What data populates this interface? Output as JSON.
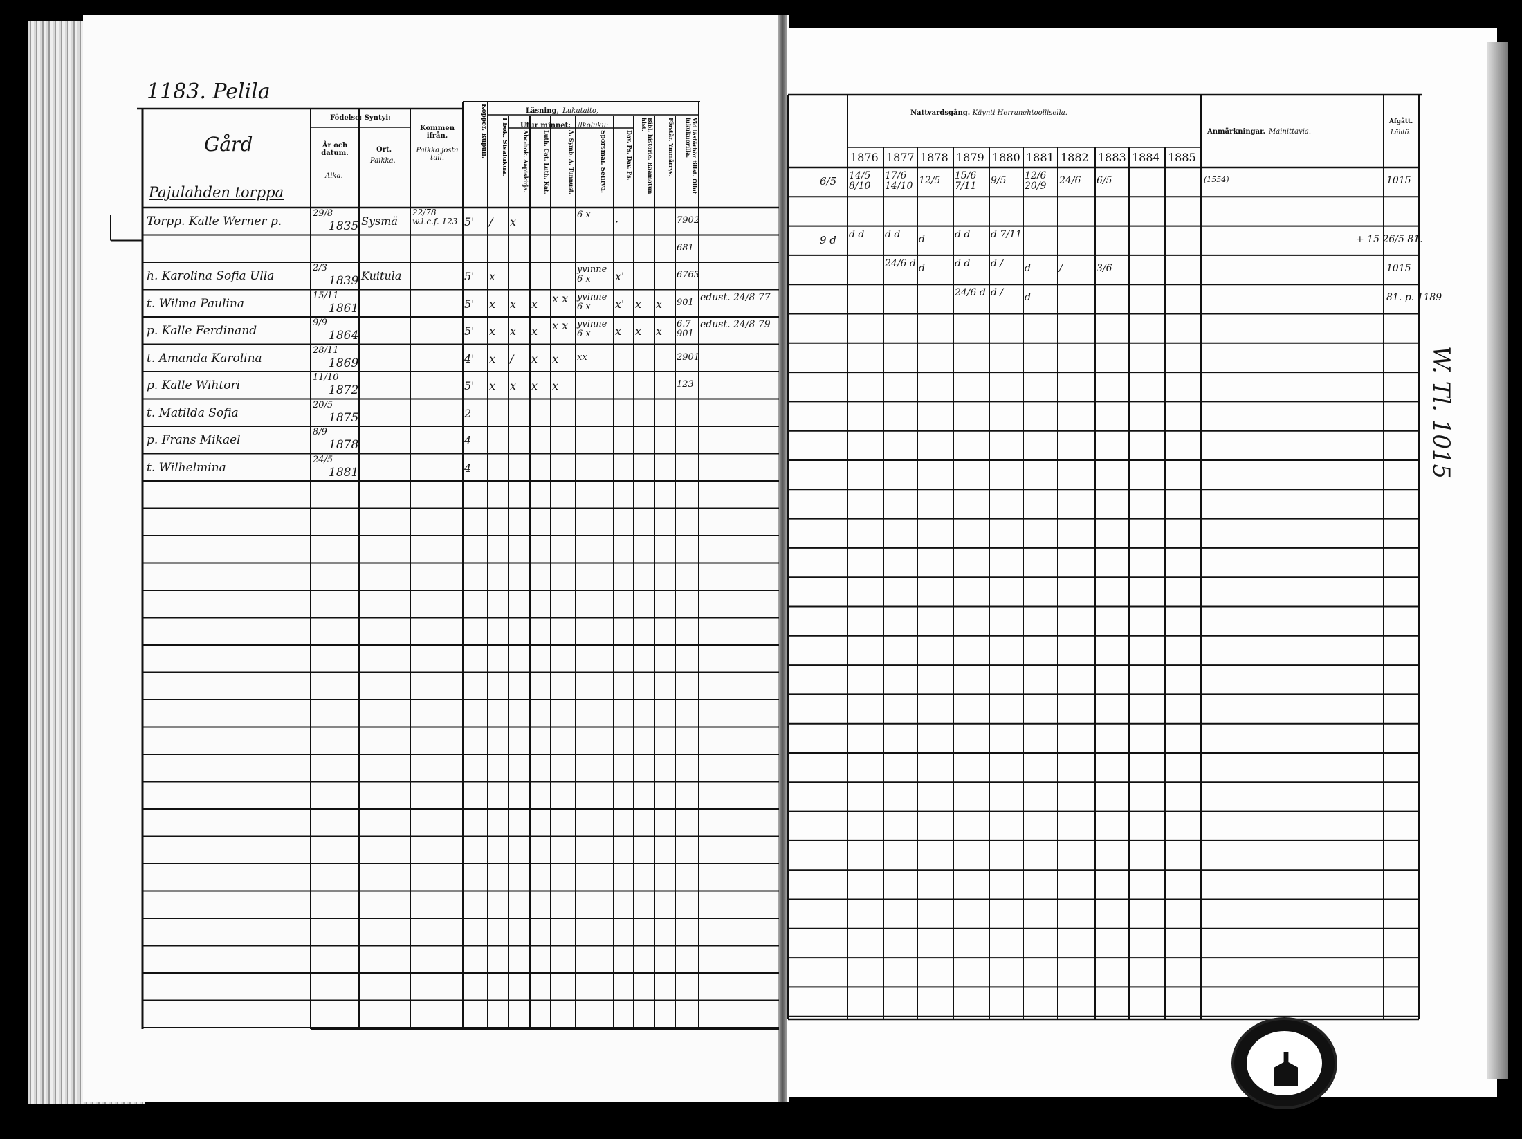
{
  "left_page": {
    "page_title": "1183. Pelila",
    "farm_header": "Gård",
    "farm_name": "Pajulahden torppa",
    "headers": {
      "birth": "Födelse: Syntyi:",
      "year_date": "År och datum.",
      "year_date_fi": "Aika.",
      "place": "Ort.",
      "place_fi": "Paikka.",
      "came_from": "Kommen ifrån.",
      "came_from_fi": "Paikka josta tuli.",
      "vaccinated": "Kopper. Rupuli.",
      "reading": "Läsning,",
      "reading_fi": "Lukutaito,",
      "by_heart": "Utur minnet:",
      "by_heart_fi": "Ulkoluku:",
      "in_book": "I bok. Sisälukua.",
      "abc": "Abc-bok. Aapiskirja.",
      "catechism": "Luth. Cat. Luth. Kat.",
      "symb": "A. Symb. A. Tunnust.",
      "questions": "Spörsmål. Selityä.",
      "psalms": "Dav. Ps. Dav. Ps.",
      "bible_history": "Bibl. historie. Raamatun hist.",
      "understanding": "Förstår. Ymmärrys.",
      "exam": "Vid läsförhör tillst. Ollut lukukuorilla."
    },
    "rows": [
      {
        "name": "Torpp. Kalle Werner p.",
        "date": "29/8",
        "year": "1835",
        "place": "Sysmä",
        "from": "22/78 w.l.c.f. 123",
        "vacc": "5'",
        "inbook": "/",
        "abc": "x",
        "quest": "6 x",
        "psalms": "·",
        "exam": "7902"
      },
      {
        "name": "",
        "date": "",
        "year": "",
        "exam": "681"
      },
      {
        "name": "h. Karolina Sofia Ulla",
        "date": "2/3",
        "year": "1839",
        "place": "Kuitula",
        "vacc": "5'",
        "inbook": "x",
        "quest": "yvinne 6 x",
        "psalms": "x'",
        "exam": "6763"
      },
      {
        "name": "t. Wilma Paulina",
        "date": "15/11",
        "year": "1861",
        "vacc": "5'",
        "inbook": "x",
        "abc": "x",
        "cat": "x",
        "symb": "x x",
        "quest": "yvinne 6 x",
        "psalms": "x'",
        "bible": "x",
        "under": "x",
        "exam": "901",
        "remark": "edust. 24/8 77"
      },
      {
        "name": "p. Kalle Ferdinand",
        "date": "9/9",
        "year": "1864",
        "vacc": "5'",
        "inbook": "x",
        "abc": "x",
        "cat": "x",
        "symb": "x x",
        "quest": "yvinne 6 x",
        "psalms": "x",
        "bible": "x",
        "under": "x",
        "exam": "6.7 901",
        "remark": "edust. 24/8 79"
      },
      {
        "name": "t. Amanda Karolina",
        "date": "28/11",
        "year": "1869",
        "vacc": "4'",
        "inbook": "x",
        "abc": "/",
        "cat": "x",
        "symb": "x",
        "quest": "xx",
        "exam": "2901"
      },
      {
        "name": "p. Kalle Wihtori",
        "date": "11/10",
        "year": "1872",
        "vacc": "5'",
        "inbook": "x",
        "abc": "x",
        "cat": "x",
        "symb": "x",
        "exam": "123"
      },
      {
        "name": "t. Matilda Sofia",
        "date": "20/5",
        "year": "1875",
        "vacc": "2"
      },
      {
        "name": "p. Frans Mikael",
        "date": "8/9",
        "year": "1878",
        "vacc": "4"
      },
      {
        "name": "t. Wilhelmina",
        "date": "24/5",
        "year": "1881",
        "vacc": "4"
      }
    ]
  },
  "right_page": {
    "headers": {
      "communion": "Nattvardsgång.",
      "communion_fi": "Käynti Herranehtoollisella.",
      "remarks": "Anmärkningar.",
      "remarks_fi": "Mainittavia.",
      "departed": "Afgått.",
      "departed_fi": "Lähtö."
    },
    "years": [
      "1876",
      "1877",
      "1878",
      "1879",
      "1880",
      "1881",
      "1882",
      "1883",
      "1884",
      "1885"
    ],
    "rows": [
      {
        "pre": "6/5",
        "y": [
          "14/5 8/10",
          "17/6 14/10",
          "12/5",
          "15/6 7/11",
          "9/5",
          "12/6 20/9",
          "24/6",
          "6/5",
          "",
          ""
        ],
        "remark": "(1554)",
        "departed": "1015"
      },
      {
        "pre": "",
        "y": [
          "",
          "",
          "",
          "",
          "",
          "",
          "",
          "",
          "",
          ""
        ]
      },
      {
        "pre": "9 d",
        "y": [
          "d d",
          "d d",
          "d",
          "d d",
          "d 7/11",
          "",
          "",
          "",
          "",
          ""
        ],
        "departed": "+ 15 26/5 81."
      },
      {
        "pre": "",
        "y": [
          "",
          "24/6 d",
          "d",
          "d d",
          "d /",
          "d",
          "/",
          "3/6",
          "",
          ""
        ],
        "departed": "1015"
      },
      {
        "pre": "",
        "y": [
          "",
          "",
          "",
          "24/6 d",
          "d /",
          "d",
          "",
          "",
          "",
          ""
        ],
        "departed": "81. p. 1189"
      }
    ],
    "margin_note": "W. Tl. 1015"
  },
  "stamp_label": "archive-stamp"
}
